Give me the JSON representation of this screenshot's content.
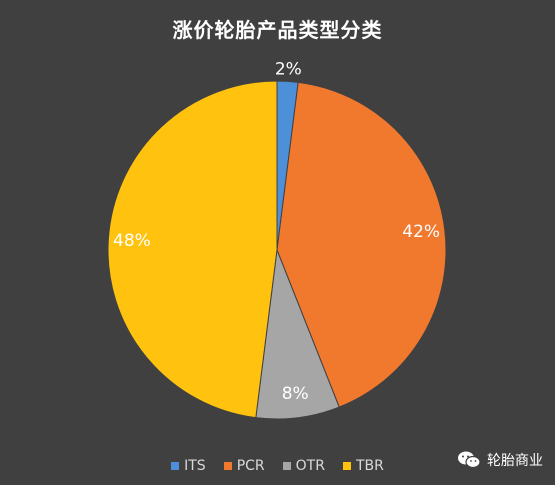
{
  "chart_data": {
    "type": "pie",
    "title": "涨价轮胎产品类型分类",
    "categories": [
      "ITS",
      "PCR",
      "OTR",
      "TBR"
    ],
    "values": [
      2,
      42,
      8,
      48
    ],
    "labels": [
      "2%",
      "42%",
      "8%",
      "48%"
    ],
    "colors": [
      "#4E8FD9",
      "#F0792E",
      "#A6A6A6",
      "#FFC20E"
    ],
    "legend_position": "bottom"
  },
  "watermark": {
    "icon": "wechat-icon",
    "text": "轮胎商业"
  }
}
